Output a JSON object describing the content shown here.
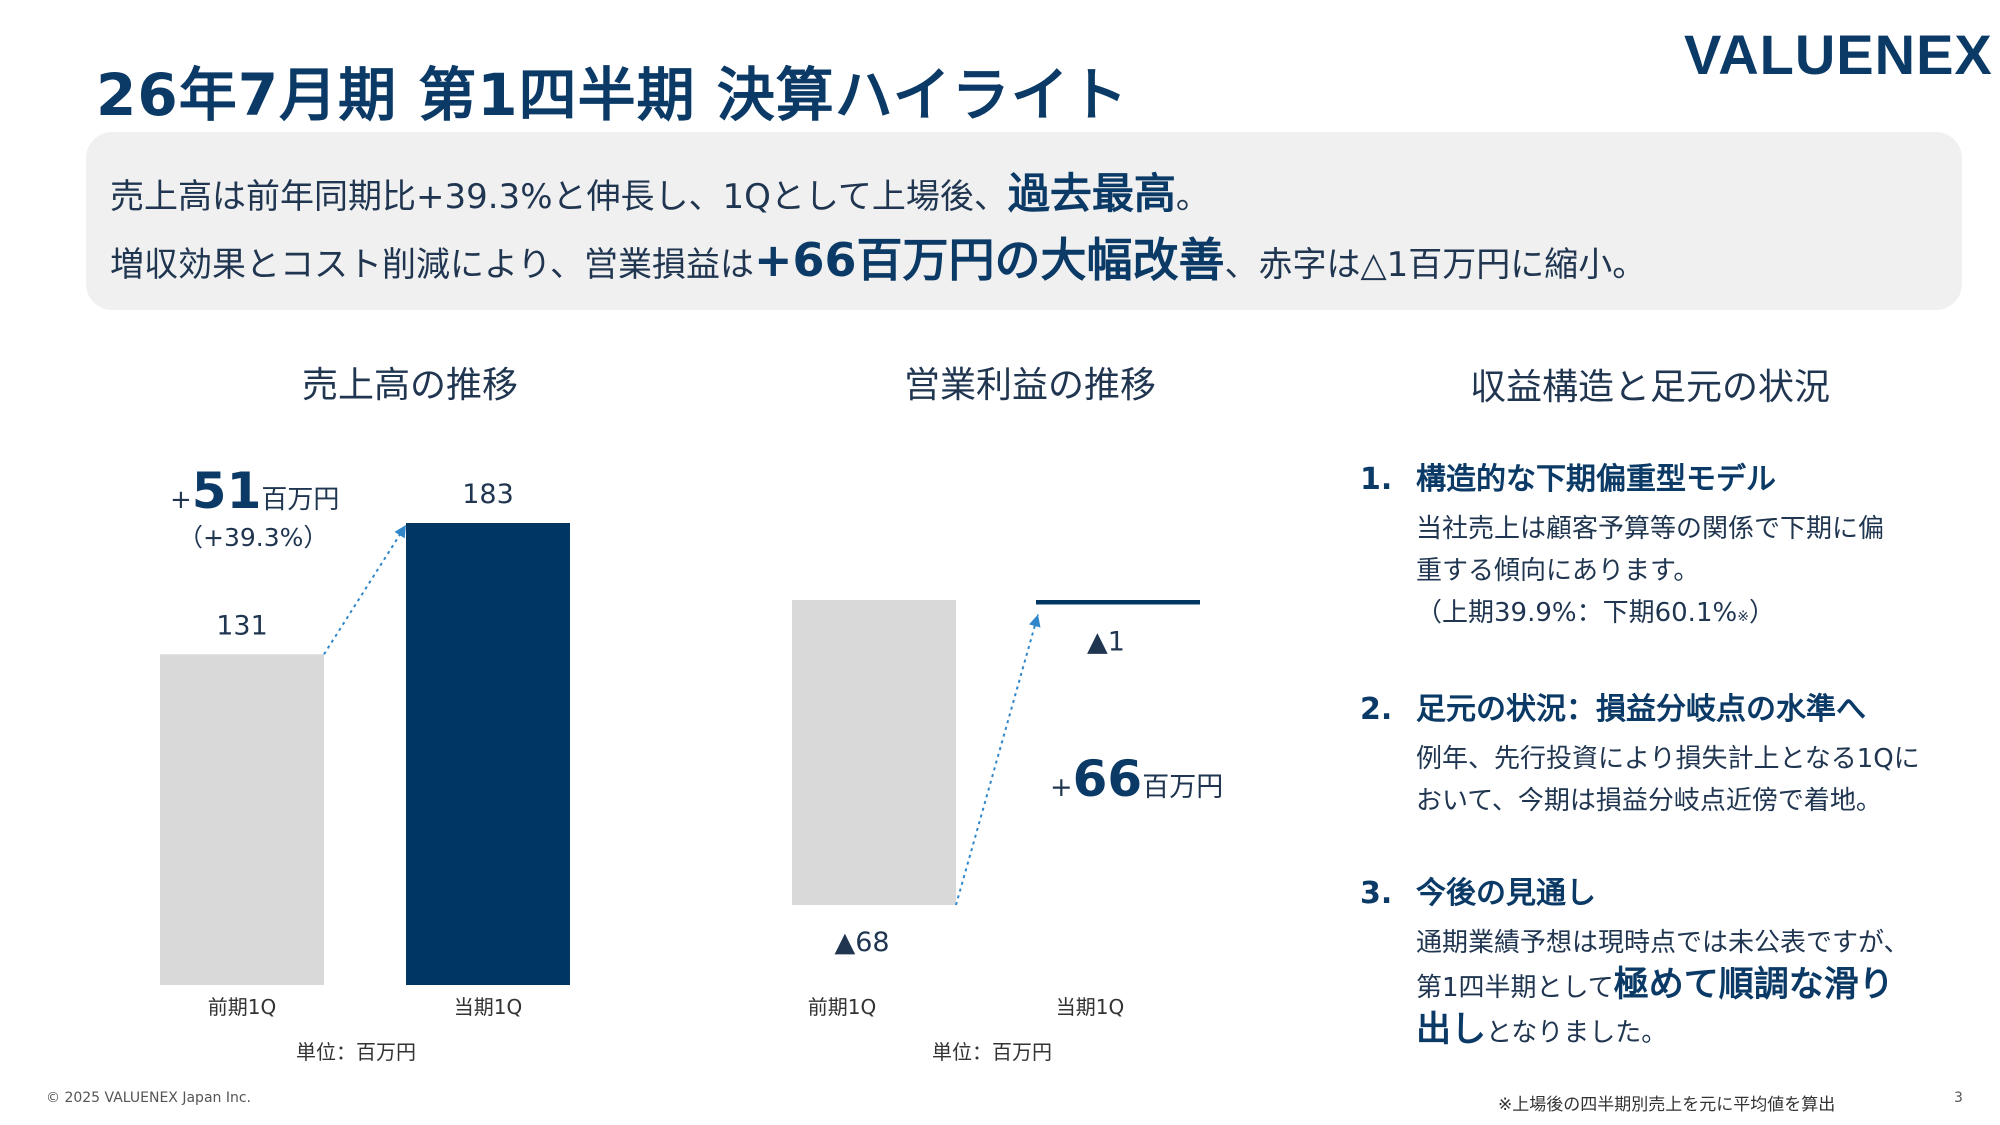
{
  "header": {
    "title": "26年7月期 第1四半期 決算ハイライト",
    "logo": "VALUENEX"
  },
  "summary": {
    "line1_pre": "売上高は前年同期比+39.3%と伸長し、1Qとして上場後、",
    "line1_em": "過去最高",
    "line1_post": "。",
    "line2_pre": "増収効果とコスト削減により、営業損益は",
    "line2_em": "+66百万円の大幅改善",
    "line2_post": "、赤字は△1百万円に縮小。"
  },
  "sections": {
    "sales_title": "売上高の推移",
    "op_title": "営業利益の推移",
    "structure_title": "収益構造と足元の状況"
  },
  "chart_data": [
    {
      "type": "bar",
      "title": "売上高の推移",
      "categories": [
        "前期1Q",
        "当期1Q"
      ],
      "values": [
        131,
        183
      ],
      "value_labels": [
        "131",
        "183"
      ],
      "unit": "単位：百万円",
      "ylim": [
        0,
        183
      ],
      "colors": [
        "#d9d9d9",
        "#003662"
      ],
      "annotation": {
        "prefix": "+",
        "value": "51",
        "suffix": "百万円",
        "pct": "（+39.3%）"
      }
    },
    {
      "type": "bar",
      "title": "営業利益の推移",
      "categories": [
        "前期1Q",
        "当期1Q"
      ],
      "values": [
        -68,
        -1
      ],
      "value_labels": [
        "▲68",
        "▲1"
      ],
      "unit": "単位：百万円",
      "ylim": [
        -68,
        0
      ],
      "colors": [
        "#d9d9d9",
        "#003662"
      ],
      "annotation": {
        "prefix": "+",
        "value": "66",
        "suffix": "百万円"
      }
    }
  ],
  "points": [
    {
      "num": "1.",
      "heading": "構造的な下期偏重型モデル",
      "body1": "当社売上は顧客予算等の関係で下期に偏",
      "body2": "重する傾向にあります。",
      "body3": "（上期39.9%：下期60.1%",
      "body3_note": "※",
      "body3_end": "）"
    },
    {
      "num": "2.",
      "heading": "足元の状況：損益分岐点の水準へ",
      "body1": "例年、先行投資により損失計上となる1Qに",
      "body2": "おいて、今期は損益分岐点近傍で着地。"
    },
    {
      "num": "3.",
      "heading": "今後の見通し",
      "body1": "通期業績予想は現時点では未公表ですが、",
      "body2_pre": "第1四半期として",
      "body2_em": "極めて順調な滑り",
      "body3_em": "出し",
      "body3_post": "となりました。"
    }
  ],
  "footer": {
    "copyright": "© 2025 VALUENEX Japan Inc.",
    "footnote": "※上場後の四半期別売上を元に平均値を算出",
    "page": "3"
  }
}
